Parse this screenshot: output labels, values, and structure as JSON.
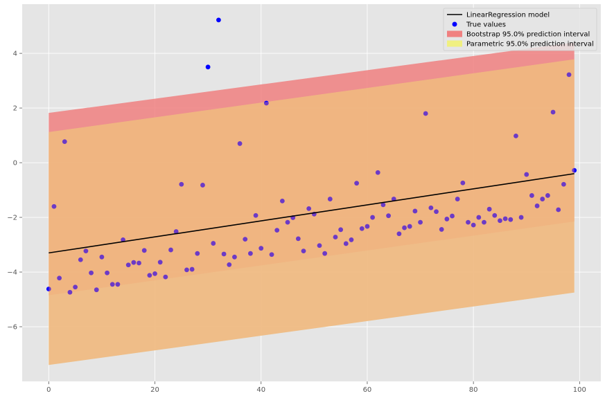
{
  "chart_data": {
    "type": "scatter",
    "title": "",
    "xlabel": "",
    "ylabel": "",
    "xlim": [
      -5,
      104
    ],
    "ylim": [
      -8,
      5.8
    ],
    "grid": true,
    "legend_location": "top-right",
    "x_ticks": [
      0,
      20,
      40,
      60,
      80,
      100
    ],
    "y_ticks": [
      -6,
      -4,
      -2,
      0,
      2,
      4
    ],
    "x_tick_labels": [
      "0",
      "20",
      "40",
      "60",
      "80",
      "100"
    ],
    "y_tick_labels": [
      "−6",
      "−4",
      "−2",
      "0",
      "2",
      "4"
    ],
    "colors": {
      "plot_background": "#e5e5e5",
      "grid": "#ffffff",
      "model_line": "#000000",
      "points": "#0000ff",
      "bootstrap_band": "#f08080",
      "parametric_band": "#f0f080"
    },
    "series": [
      {
        "name": "LinearRegression model",
        "kind": "line",
        "x": [
          0,
          99
        ],
        "y": [
          -3.3,
          -0.4
        ]
      },
      {
        "name": "True values",
        "kind": "scatter",
        "x": [
          0,
          1,
          2,
          3,
          4,
          5,
          6,
          7,
          8,
          9,
          10,
          11,
          12,
          13,
          14,
          15,
          16,
          17,
          18,
          19,
          20,
          21,
          22,
          23,
          24,
          25,
          26,
          27,
          28,
          29,
          30,
          31,
          32,
          33,
          34,
          35,
          36,
          37,
          38,
          39,
          40,
          41,
          42,
          43,
          44,
          45,
          46,
          47,
          48,
          49,
          50,
          51,
          52,
          53,
          54,
          55,
          56,
          57,
          58,
          59,
          60,
          61,
          62,
          63,
          64,
          65,
          66,
          67,
          68,
          69,
          70,
          71,
          72,
          73,
          74,
          75,
          76,
          77,
          78,
          79,
          80,
          81,
          82,
          83,
          84,
          85,
          86,
          87,
          88,
          89,
          90,
          91,
          92,
          93,
          94,
          95,
          96,
          97,
          98,
          99
        ],
        "y": [
          -4.62,
          -1.6,
          -4.22,
          0.77,
          -4.74,
          -4.55,
          -3.55,
          -3.23,
          -4.03,
          -4.65,
          -3.45,
          -4.03,
          -4.45,
          -4.45,
          -2.82,
          -3.74,
          -3.65,
          -3.67,
          -3.21,
          -4.12,
          -4.06,
          -3.64,
          -4.18,
          -3.19,
          -2.52,
          -0.79,
          -3.92,
          -3.9,
          -3.32,
          -0.82,
          3.5,
          -2.95,
          5.22,
          -3.34,
          -3.73,
          -3.45,
          0.7,
          -2.8,
          -3.32,
          -1.93,
          -3.13,
          2.18,
          -3.36,
          -2.47,
          -1.4,
          -2.18,
          -2.01,
          -2.78,
          -3.23,
          -1.68,
          -1.88,
          -3.03,
          -3.32,
          -1.33,
          -2.72,
          -2.45,
          -2.96,
          -2.82,
          -0.75,
          -2.41,
          -2.33,
          -2.0,
          -0.36,
          -1.54,
          -1.94,
          -1.33,
          -2.6,
          -2.38,
          -2.33,
          -1.77,
          -2.18,
          1.8,
          -1.65,
          -1.79,
          -2.44,
          -2.06,
          -1.95,
          -1.33,
          -0.74,
          -2.18,
          -2.28,
          -2.0,
          -2.18,
          -1.7,
          -1.93,
          -2.12,
          -2.05,
          -2.08,
          0.98,
          -2.0,
          -0.43,
          -1.2,
          -1.58,
          -1.33,
          -1.2,
          1.85,
          -1.72,
          -0.79,
          3.22,
          -0.28
        ]
      },
      {
        "name": "Bootstrap 95.0% prediction interval",
        "kind": "band",
        "x": [
          0,
          99
        ],
        "lower": [
          -4.85,
          -2.15
        ],
        "upper": [
          1.82,
          4.4
        ]
      },
      {
        "name": "Parametric 95.0% prediction interval",
        "kind": "band",
        "x": [
          0,
          99
        ],
        "lower": [
          -7.4,
          -4.75
        ],
        "upper": [
          1.12,
          3.78
        ]
      }
    ]
  }
}
